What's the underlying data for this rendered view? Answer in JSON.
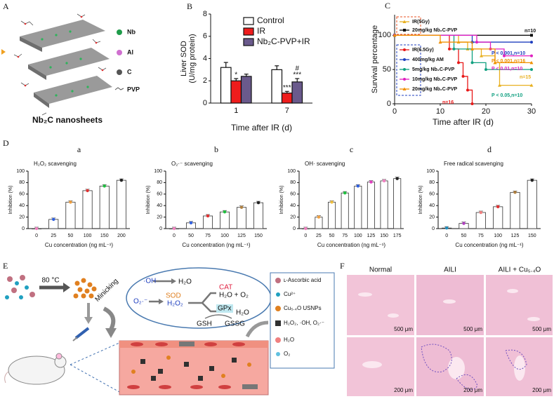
{
  "panel_labels": [
    "A",
    "B",
    "C",
    "D",
    "E",
    "F"
  ],
  "panel_a": {
    "legend": [
      "Nb",
      "Al",
      "C",
      "PVP"
    ],
    "caption": "Nb₂C nanosheets"
  },
  "chart_data": [
    {
      "type": "bar",
      "y_label": [
        "Liver SOD",
        "(U/mg protein)"
      ],
      "x_label": "Time after IR (d)",
      "categories": [
        "1",
        "7"
      ],
      "series": [
        {
          "name": "Control",
          "color": "#ffffff",
          "values": [
            3.2,
            3.0
          ],
          "errors": [
            0.45,
            0.35
          ]
        },
        {
          "name": "IR",
          "color": "#ee1c1c",
          "values": [
            2.0,
            0.9
          ],
          "errors": [
            0.2,
            0.15
          ],
          "significance": [
            "*",
            "***"
          ]
        },
        {
          "name": "Nb₂C-PVP+IR",
          "color": "#6a5a8c",
          "values": [
            2.4,
            1.9
          ],
          "errors": [
            0.2,
            0.3
          ],
          "significance": [
            null,
            "***"
          ],
          "significance_vs_ir": [
            null,
            "#"
          ]
        }
      ],
      "ylim": [
        0,
        8
      ],
      "yticks": [
        0,
        2,
        4,
        6,
        8
      ]
    },
    {
      "type": "step",
      "y_label": "Survival percentage",
      "x_label": "Time after IR (d)",
      "series": [
        {
          "name": "IR(5Gy)",
          "color": "#e8b020",
          "marker": "triangle",
          "x": [
            0,
            14,
            16,
            19,
            22,
            23,
            30
          ],
          "values": [
            100,
            90,
            80,
            70,
            60,
            27,
            27
          ]
        },
        {
          "name": "20mg/kg Nb₂C-PVP",
          "color": "#111111",
          "marker": "square",
          "x": [
            0,
            30
          ],
          "values": [
            100,
            100
          ]
        },
        {
          "name": "IR(6.5Gy)",
          "color": "#e81818",
          "marker": "circle",
          "x": [
            0,
            12,
            14,
            15,
            16,
            17
          ],
          "values": [
            100,
            80,
            60,
            40,
            20,
            0
          ]
        },
        {
          "name": "400mg/kg AM",
          "color": "#1f3fbf",
          "marker": "circle",
          "x": [
            0,
            17,
            30
          ],
          "values": [
            100,
            90,
            90
          ]
        },
        {
          "name": "5mg/kg Nb₂C-PVP",
          "color": "#10a080",
          "marker": "circle",
          "x": [
            0,
            13,
            17,
            20,
            30
          ],
          "values": [
            100,
            80,
            60,
            50,
            50
          ]
        },
        {
          "name": "10mg/kg Nb₂C-PVP",
          "color": "#e020c0",
          "marker": "circle",
          "x": [
            0,
            18,
            21,
            24,
            30
          ],
          "values": [
            100,
            90,
            80,
            70,
            70
          ]
        },
        {
          "name": "20mg/kg Nb₂C-PVP",
          "color": "#f09000",
          "marker": "triangle",
          "x": [
            0,
            10,
            17,
            22,
            30
          ],
          "values": [
            100,
            90,
            80,
            60,
            60
          ]
        }
      ],
      "annotations": [
        {
          "text": "n=10",
          "color": "#111111"
        },
        {
          "text": "P < 0.001,n=10",
          "color": "#1f3fbf"
        },
        {
          "text": "P < 0.001,n=16",
          "color": "#f09000"
        },
        {
          "text": "P < 0.01,n=10",
          "color": "#e020c0"
        },
        {
          "text": "n=15",
          "color": "#e8b020"
        },
        {
          "text": "P < 0.05,n=10",
          "color": "#10a080"
        },
        {
          "text": "n=16",
          "color": "#e81818"
        }
      ],
      "xlim": [
        0,
        30
      ],
      "xticks": [
        0,
        10,
        20,
        30
      ],
      "ylim": [
        0,
        130
      ],
      "yticks": [
        0,
        50,
        100
      ]
    },
    {
      "type": "bar",
      "subplot": "a",
      "title": "H₂O₂ scavenging",
      "y_label": "Inhibition (%)",
      "x_label": "Cu concentration (ng mL⁻¹)",
      "categories": [
        "0",
        "25",
        "50",
        "100",
        "150",
        "200"
      ],
      "values": [
        0,
        16,
        46,
        66,
        74,
        84
      ],
      "colors": [
        "#f080c0",
        "#3060e0",
        "#f0a040",
        "#e03030",
        "#20c040",
        "#222222"
      ],
      "ylim": [
        0,
        100
      ],
      "yticks": [
        0,
        20,
        40,
        60,
        80,
        100
      ]
    },
    {
      "type": "bar",
      "subplot": "b",
      "title": "O₂·⁻ scavenging",
      "y_label": "Inhibition (%)",
      "x_label": "Cu concentration (ng mL⁻¹)",
      "categories": [
        "0",
        "50",
        "75",
        "100",
        "125",
        "150"
      ],
      "values": [
        0,
        10,
        22,
        29,
        37,
        45
      ],
      "colors": [
        "#f080c0",
        "#3060e0",
        "#e03030",
        "#20c040",
        "#b08040",
        "#222222"
      ],
      "ylim": [
        0,
        100
      ],
      "yticks": [
        0,
        20,
        40,
        60,
        80,
        100
      ]
    },
    {
      "type": "bar",
      "subplot": "c",
      "title": "OH· scavenging",
      "y_label": "Inhibition (%)",
      "x_label": "Cu concentration (ng mL⁻¹)",
      "categories": [
        "0",
        "25",
        "50",
        "75",
        "100",
        "125",
        "150",
        "175"
      ],
      "values": [
        0,
        20,
        46,
        62,
        74,
        81,
        83,
        87
      ],
      "colors": [
        "#f080c0",
        "#f0a040",
        "#f0c040",
        "#20c040",
        "#3060e0",
        "#e040c0",
        "#f080c0",
        "#222222"
      ],
      "ylim": [
        0,
        100
      ],
      "yticks": [
        0,
        20,
        40,
        60,
        80,
        100
      ]
    },
    {
      "type": "bar",
      "subplot": "d",
      "title": "Free radical scavenging",
      "y_label": "Inhibition (%)",
      "x_label": "Cu concentration (ng mL⁻¹)",
      "categories": [
        "0",
        "50",
        "75",
        "100",
        "125",
        "150"
      ],
      "values": [
        1,
        9,
        28,
        38,
        63,
        84
      ],
      "colors": [
        "#2090c0",
        "#b040c0",
        "#f08080",
        "#e03030",
        "#b08040",
        "#222222"
      ],
      "ylim": [
        0,
        100
      ],
      "yticks": [
        0,
        20,
        40,
        60,
        80,
        100
      ]
    }
  ],
  "panel_e": {
    "temp": "80 °C",
    "mimic": "Minicking",
    "oh": "·OH",
    "h2o_a": "H₂O",
    "o2": "O₂·⁻",
    "sod": "SOD",
    "h2o2": "H₂O₂",
    "cat": "CAT",
    "prod": "H₂O + O₂",
    "gpx": "GPx",
    "h2o_b": "H₂O",
    "gsh": "GSH",
    "gssg": "GSSG",
    "legend": [
      "ʟ-Ascorbic acid",
      "Cu²⁺",
      "Cu₅.₄O USNPs",
      "H₂O₂, ·OH, O₂·⁻",
      "H₂O",
      "O₂"
    ]
  },
  "panel_f": {
    "columns": [
      "Normal",
      "AILI",
      "AILI + Cu₅.₄O"
    ],
    "scale_bars": [
      [
        "500 μm",
        "500 μm",
        "500 μm"
      ],
      [
        "200 μm",
        "200 μm",
        "200 μm"
      ]
    ]
  }
}
